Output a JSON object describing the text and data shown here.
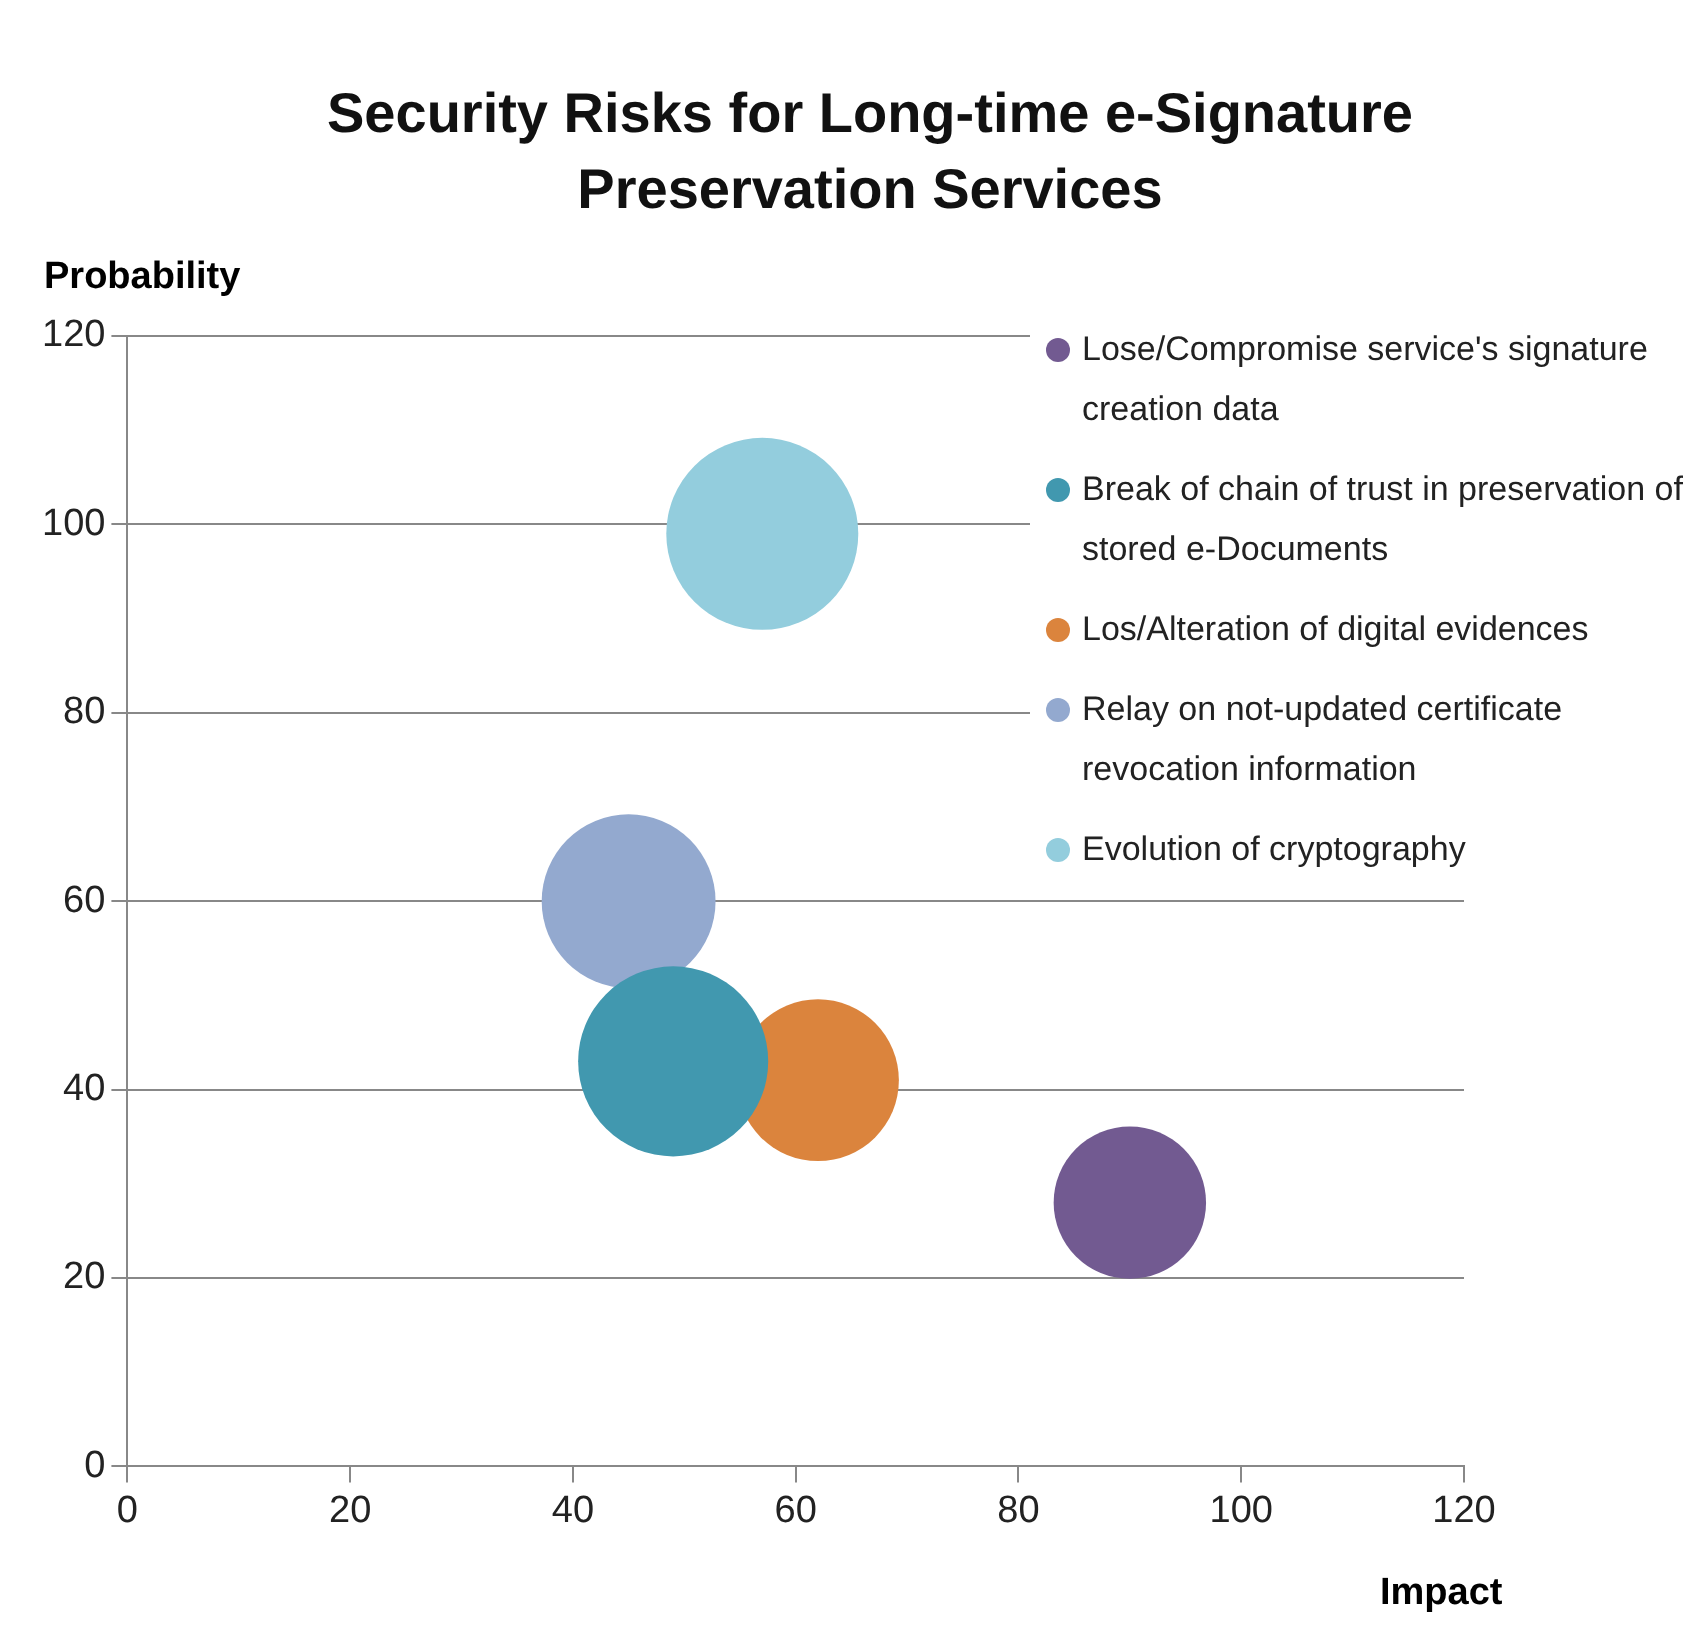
{
  "chart_data": {
    "type": "bubble",
    "title": "Security Risks for Long-time e-Signature Preservation Services",
    "xlabel": "Impact",
    "ylabel": "Probability",
    "xlim": [
      0,
      120
    ],
    "xticks": [
      0,
      20,
      40,
      60,
      80,
      100,
      120
    ],
    "ylim": [
      0,
      120
    ],
    "yticks": [
      0,
      20,
      40,
      60,
      80,
      100,
      120
    ],
    "grid": "y",
    "legend": "top right",
    "series": [
      {
        "name": "Lose/Compromise service's signature creation data",
        "color": "#725a91",
        "x": [
          90
        ],
        "values": [
          28
        ],
        "sizes": [
          0.63
        ]
      },
      {
        "name": "Break of chain of trust in preservation of stored e-Documents",
        "color": "#4198af",
        "x": [
          49
        ],
        "values": [
          43
        ],
        "sizes": [
          0.98
        ]
      },
      {
        "name": "Los/Alteration of digital evidences",
        "color": "#db843d",
        "x": [
          62
        ],
        "values": [
          41
        ],
        "sizes": [
          0.71
        ]
      },
      {
        "name": "Relay on not-updated certificate revocation information",
        "color": "#93a9cf",
        "x": [
          45
        ],
        "values": [
          60
        ],
        "sizes": [
          0.82
        ]
      },
      {
        "name": "Evolution of cryptography",
        "color": "#93cddd",
        "x": [
          57
        ],
        "values": [
          99
        ],
        "sizes": [
          1
        ]
      }
    ]
  }
}
